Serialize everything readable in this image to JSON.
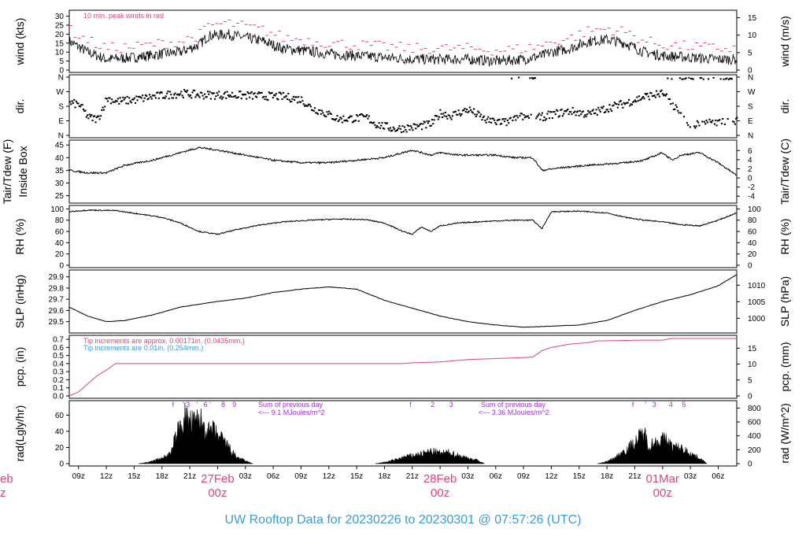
{
  "page": {
    "footer_title": "UW Rooftop Data for 20230226  to  20230301 @ 07:57:26  (UTC)",
    "colors": {
      "accent_red": "#d9476f",
      "accent_blue": "#3a9ad9",
      "accent_purple": "#9b30d9",
      "line_black": "#000000"
    }
  },
  "time_axis": {
    "start_hour": 8,
    "end_hour": 80,
    "tick_hours": [
      9,
      12,
      15,
      18,
      21,
      24,
      27,
      30,
      33,
      36,
      39,
      42,
      45,
      48,
      51,
      54,
      57,
      60,
      63,
      66,
      69,
      72,
      75,
      78
    ],
    "tick_labels": [
      "09z",
      "12z",
      "15z",
      "18z",
      "21z",
      "27Feb",
      "03z",
      "06z",
      "09z",
      "12z",
      "15z",
      "18z",
      "21z",
      "28Feb",
      "03z",
      "06z",
      "09z",
      "12z",
      "15z",
      "18z",
      "21z",
      "01Mar",
      "03z",
      "06z"
    ],
    "day_marks": [
      {
        "hour": 24,
        "date": "27Feb",
        "z": "00z"
      },
      {
        "hour": 48,
        "date": "28Feb",
        "z": "00z"
      },
      {
        "hour": 72,
        "date": "01Mar",
        "z": "00z"
      }
    ],
    "left_cut_labels": [
      "eb",
      "z"
    ]
  },
  "chart_data": [
    {
      "id": "wind",
      "type": "line",
      "ylabel_left": "wind (kts)",
      "ylabel_right": "wind (m/s)",
      "ylim": [
        0,
        32
      ],
      "ticks_left": [
        0,
        5,
        10,
        15,
        20,
        25,
        30
      ],
      "ticks_right": [
        0,
        5,
        10,
        15
      ],
      "right_factor": 1.9438,
      "annotation": "10 min. peak winds in red",
      "key_points": [
        [
          8,
          16
        ],
        [
          10,
          10
        ],
        [
          12,
          6
        ],
        [
          15,
          7
        ],
        [
          18,
          9
        ],
        [
          20,
          10
        ],
        [
          22,
          14
        ],
        [
          23,
          19
        ],
        [
          25,
          20
        ],
        [
          27,
          18
        ],
        [
          29,
          16
        ],
        [
          31,
          12
        ],
        [
          33,
          11
        ],
        [
          36,
          9
        ],
        [
          39,
          8
        ],
        [
          42,
          7
        ],
        [
          45,
          6
        ],
        [
          48,
          6
        ],
        [
          51,
          6
        ],
        [
          54,
          5
        ],
        [
          57,
          6
        ],
        [
          59,
          8
        ],
        [
          60,
          10
        ],
        [
          62,
          12
        ],
        [
          64,
          16
        ],
        [
          66,
          17
        ],
        [
          68,
          15
        ],
        [
          70,
          10
        ],
        [
          72,
          8
        ],
        [
          75,
          7
        ],
        [
          78,
          6
        ],
        [
          80,
          6
        ]
      ]
    },
    {
      "id": "dir",
      "type": "scatter",
      "ylabel_left": "dir.",
      "ylabel_right": "dir.",
      "ylim": [
        0,
        360
      ],
      "ticks_left": [
        "N",
        "E",
        "S",
        "W",
        "N"
      ],
      "ticks_right": [
        "N",
        "E",
        "S",
        "W",
        "N"
      ],
      "tick_values": [
        0,
        90,
        180,
        270,
        360
      ],
      "key_points": [
        [
          8,
          200
        ],
        [
          9,
          190
        ],
        [
          10,
          110
        ],
        [
          11,
          100
        ],
        [
          12,
          230
        ],
        [
          13,
          210
        ],
        [
          15,
          220
        ],
        [
          17,
          240
        ],
        [
          20,
          260
        ],
        [
          22,
          250
        ],
        [
          25,
          250
        ],
        [
          28,
          245
        ],
        [
          31,
          240
        ],
        [
          33,
          220
        ],
        [
          34,
          170
        ],
        [
          35,
          150
        ],
        [
          37,
          100
        ],
        [
          40,
          110
        ],
        [
          41,
          70
        ],
        [
          43,
          40
        ],
        [
          45,
          50
        ],
        [
          47,
          70
        ],
        [
          48,
          140
        ],
        [
          49,
          120
        ],
        [
          51,
          160
        ],
        [
          53,
          90
        ],
        [
          55,
          80
        ],
        [
          57,
          120
        ],
        [
          58,
          100
        ],
        [
          60,
          130
        ],
        [
          62,
          150
        ],
        [
          64,
          130
        ],
        [
          66,
          170
        ],
        [
          68,
          200
        ],
        [
          70,
          240
        ],
        [
          72,
          260
        ],
        [
          73,
          190
        ],
        [
          74,
          120
        ],
        [
          75,
          60
        ],
        [
          77,
          80
        ],
        [
          80,
          90
        ]
      ]
    },
    {
      "id": "temp",
      "type": "line",
      "ylabel_left": [
        "Tair/Tdew (F)",
        "Inside Box"
      ],
      "ylabel_right": "Tair/Tdew (C)",
      "ylim": [
        23,
        46
      ],
      "ticks_left": [
        25,
        30,
        35,
        40,
        45
      ],
      "ticks_right": [
        -4,
        -2,
        0,
        2,
        4,
        6
      ],
      "key_points": [
        [
          8,
          35
        ],
        [
          10,
          34
        ],
        [
          12,
          34
        ],
        [
          14,
          37
        ],
        [
          17,
          39
        ],
        [
          20,
          42
        ],
        [
          22,
          44
        ],
        [
          24,
          43
        ],
        [
          27,
          41
        ],
        [
          30,
          39
        ],
        [
          33,
          38
        ],
        [
          36,
          38
        ],
        [
          39,
          39
        ],
        [
          42,
          40
        ],
        [
          44,
          42
        ],
        [
          45,
          43
        ],
        [
          47,
          41
        ],
        [
          48,
          42
        ],
        [
          50,
          41
        ],
        [
          54,
          41
        ],
        [
          56,
          40
        ],
        [
          58,
          40
        ],
        [
          59,
          35
        ],
        [
          61,
          36
        ],
        [
          64,
          37
        ],
        [
          68,
          38
        ],
        [
          70,
          39
        ],
        [
          72,
          42
        ],
        [
          73,
          39
        ],
        [
          74,
          41
        ],
        [
          76,
          42
        ],
        [
          78,
          38
        ],
        [
          80,
          33
        ]
      ]
    },
    {
      "id": "rh",
      "type": "line",
      "ylabel_left": "RH (%)",
      "ylabel_right": "RH (%)",
      "ylim": [
        0,
        102
      ],
      "ticks_left": [
        0,
        20,
        40,
        60,
        80,
        100
      ],
      "ticks_right": [
        0,
        20,
        40,
        60,
        80,
        100
      ],
      "key_points": [
        [
          8,
          95
        ],
        [
          10,
          98
        ],
        [
          13,
          97
        ],
        [
          16,
          90
        ],
        [
          18,
          85
        ],
        [
          20,
          75
        ],
        [
          22,
          60
        ],
        [
          24,
          55
        ],
        [
          26,
          63
        ],
        [
          28,
          70
        ],
        [
          31,
          77
        ],
        [
          34,
          80
        ],
        [
          37,
          82
        ],
        [
          40,
          81
        ],
        [
          42,
          75
        ],
        [
          44,
          60
        ],
        [
          45,
          55
        ],
        [
          46,
          68
        ],
        [
          47,
          60
        ],
        [
          48,
          70
        ],
        [
          50,
          75
        ],
        [
          53,
          78
        ],
        [
          56,
          80
        ],
        [
          58,
          80
        ],
        [
          59,
          65
        ],
        [
          60,
          95
        ],
        [
          63,
          96
        ],
        [
          66,
          93
        ],
        [
          68,
          85
        ],
        [
          70,
          80
        ],
        [
          72,
          77
        ],
        [
          74,
          72
        ],
        [
          76,
          70
        ],
        [
          78,
          80
        ],
        [
          80,
          93
        ]
      ]
    },
    {
      "id": "slp",
      "type": "line",
      "ylabel_left": "SLP (inHg)",
      "ylabel_right": "SLP (hPa)",
      "ylim": [
        29.42,
        29.94
      ],
      "ticks_left": [
        29.5,
        29.6,
        29.7,
        29.8,
        29.9
      ],
      "ticks_right": [
        1000,
        1005,
        1010
      ],
      "right_factor": 33.8639,
      "key_points": [
        [
          8,
          29.63
        ],
        [
          10,
          29.55
        ],
        [
          12,
          29.5
        ],
        [
          14,
          29.51
        ],
        [
          17,
          29.56
        ],
        [
          20,
          29.63
        ],
        [
          24,
          29.68
        ],
        [
          27,
          29.71
        ],
        [
          30,
          29.76
        ],
        [
          33,
          29.79
        ],
        [
          36,
          29.81
        ],
        [
          39,
          29.79
        ],
        [
          42,
          29.69
        ],
        [
          45,
          29.62
        ],
        [
          48,
          29.55
        ],
        [
          51,
          29.5
        ],
        [
          54,
          29.47
        ],
        [
          57,
          29.45
        ],
        [
          60,
          29.46
        ],
        [
          63,
          29.47
        ],
        [
          66,
          29.51
        ],
        [
          69,
          29.6
        ],
        [
          72,
          29.68
        ],
        [
          75,
          29.74
        ],
        [
          78,
          29.82
        ],
        [
          80,
          29.92
        ]
      ]
    },
    {
      "id": "pcp",
      "type": "line",
      "ylabel_left": "pcp. (in)",
      "ylabel_right": "pcp. (mm)",
      "ylim": [
        0,
        0.72
      ],
      "ticks_left": [
        0.0,
        0.1,
        0.2,
        0.3,
        0.4,
        0.5,
        0.6,
        0.7
      ],
      "ticks_right": [
        0,
        5,
        10,
        15
      ],
      "right_factor": 0.03937,
      "notes": [
        "Tip increments are approx. 0.00171in. (0.0435mm.)",
        "Tip increments are 0.01in. (0.254mm.)"
      ],
      "key_points": [
        [
          8,
          0.0
        ],
        [
          9,
          0.05
        ],
        [
          10,
          0.15
        ],
        [
          11,
          0.25
        ],
        [
          12,
          0.32
        ],
        [
          13,
          0.4
        ],
        [
          44,
          0.4
        ],
        [
          45,
          0.41
        ],
        [
          48,
          0.42
        ],
        [
          49,
          0.43
        ],
        [
          51,
          0.45
        ],
        [
          56,
          0.47
        ],
        [
          58,
          0.48
        ],
        [
          59,
          0.56
        ],
        [
          60,
          0.6
        ],
        [
          62,
          0.64
        ],
        [
          64,
          0.66
        ],
        [
          65,
          0.68
        ],
        [
          70,
          0.69
        ],
        [
          72,
          0.69
        ],
        [
          73,
          0.71
        ],
        [
          80,
          0.71
        ]
      ]
    },
    {
      "id": "rad",
      "type": "area",
      "ylabel_left": "rad(Lgly/hr)",
      "ylabel_right": "rad (W/m^2)",
      "ylim": [
        0,
        75
      ],
      "ticks_left": [
        0,
        20,
        40,
        60
      ],
      "ticks_right": [
        0,
        200,
        400,
        600,
        800
      ],
      "right_factor": 0.086,
      "day_sum_note": [
        "Sum of previous day",
        "<--- 9.1 MJoules/m^2",
        "Sum of previous day",
        "<--- 3.36 MJoules/m^2"
      ],
      "hour_markers_red": [
        [
          "f",
          19.2
        ],
        [
          "'",
          20.3
        ],
        [
          "3",
          20.8
        ],
        [
          "'",
          21.8
        ],
        [
          "6",
          22.7
        ],
        [
          "'",
          23.2
        ],
        [
          "8",
          24.6
        ],
        [
          "9",
          25.8
        ]
      ],
      "hour_markers_purple": [
        [
          "f",
          44.8
        ],
        [
          "2",
          47.2
        ],
        [
          "3",
          49.2
        ],
        [
          "f",
          68.8
        ],
        [
          "'",
          70.2
        ],
        [
          "3",
          71.1
        ],
        [
          "4",
          72.9
        ],
        [
          "5",
          74.3
        ]
      ],
      "day1": [
        [
          15.5,
          0
        ],
        [
          16.5,
          2
        ],
        [
          18,
          8
        ],
        [
          19,
          15
        ],
        [
          19.5,
          40
        ],
        [
          20,
          55
        ],
        [
          20.5,
          68
        ],
        [
          21,
          60
        ],
        [
          21.5,
          58
        ],
        [
          22,
          65
        ],
        [
          22.5,
          55
        ],
        [
          23,
          45
        ],
        [
          23.5,
          48
        ],
        [
          24,
          40
        ],
        [
          24.5,
          35
        ],
        [
          25,
          28
        ],
        [
          25.5,
          18
        ],
        [
          26,
          10
        ],
        [
          27,
          4
        ],
        [
          27.8,
          0
        ]
      ],
      "day2": [
        [
          41,
          0
        ],
        [
          42,
          2
        ],
        [
          43,
          5
        ],
        [
          44,
          9
        ],
        [
          45,
          12
        ],
        [
          46,
          14
        ],
        [
          47,
          18
        ],
        [
          48,
          15
        ],
        [
          49,
          16
        ],
        [
          50,
          12
        ],
        [
          51,
          8
        ],
        [
          52,
          5
        ],
        [
          52.8,
          0
        ]
      ],
      "day3": [
        [
          65,
          0
        ],
        [
          66,
          3
        ],
        [
          67,
          10
        ],
        [
          68,
          20
        ],
        [
          69,
          30
        ],
        [
          69.5,
          38
        ],
        [
          70,
          45
        ],
        [
          70.5,
          25
        ],
        [
          71,
          30
        ],
        [
          72,
          35
        ],
        [
          72.5,
          33
        ],
        [
          73,
          25
        ],
        [
          74,
          22
        ],
        [
          75,
          15
        ],
        [
          76,
          8
        ],
        [
          76.8,
          0
        ]
      ]
    }
  ]
}
